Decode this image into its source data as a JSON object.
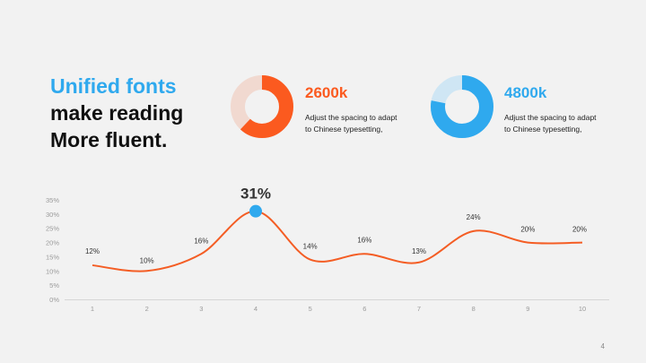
{
  "colors": {
    "background": "#f2f2f2",
    "accent_blue": "#2fa9ee",
    "accent_orange": "#fb5a1f",
    "ring_track_orange": "#f1d9d0",
    "ring_track_blue": "#cfe6f4",
    "line": "#f45d24",
    "axis_text": "#9a9a9a"
  },
  "headline": {
    "line1": "Unified fonts",
    "line2": "make reading",
    "line3": "More fluent."
  },
  "stats": [
    {
      "value": "2600k",
      "desc_line1": "Adjust the spacing to adapt",
      "desc_line2": "to Chinese typesetting,",
      "ring_fraction": 0.62,
      "color": "#fb5a1f",
      "track_color": "#f1d9d0"
    },
    {
      "value": "4800k",
      "desc_line1": "Adjust the spacing to adapt",
      "desc_line2": "to Chinese typesetting,",
      "ring_fraction": 0.78,
      "color": "#2fa9ee",
      "track_color": "#cfe6f4"
    }
  ],
  "chart_data": {
    "type": "line",
    "x": [
      1,
      2,
      3,
      4,
      5,
      6,
      7,
      8,
      9,
      10
    ],
    "series": [
      {
        "values": [
          12,
          10,
          16,
          31,
          14,
          16,
          13,
          24,
          20,
          20
        ],
        "labels": [
          "12%",
          "10%",
          "16%",
          "31%",
          "14%",
          "16%",
          "13%",
          "24%",
          "20%",
          "20%"
        ]
      }
    ],
    "ylim": [
      0,
      35
    ],
    "yticks": [
      "0%",
      "5%",
      "10%",
      "15%",
      "20%",
      "25%",
      "30%",
      "35%"
    ],
    "xticks": [
      "1",
      "2",
      "3",
      "4",
      "5",
      "6",
      "7",
      "8",
      "9",
      "10"
    ],
    "highlight_index": 3,
    "grid": false
  },
  "page": {
    "number": "4"
  }
}
